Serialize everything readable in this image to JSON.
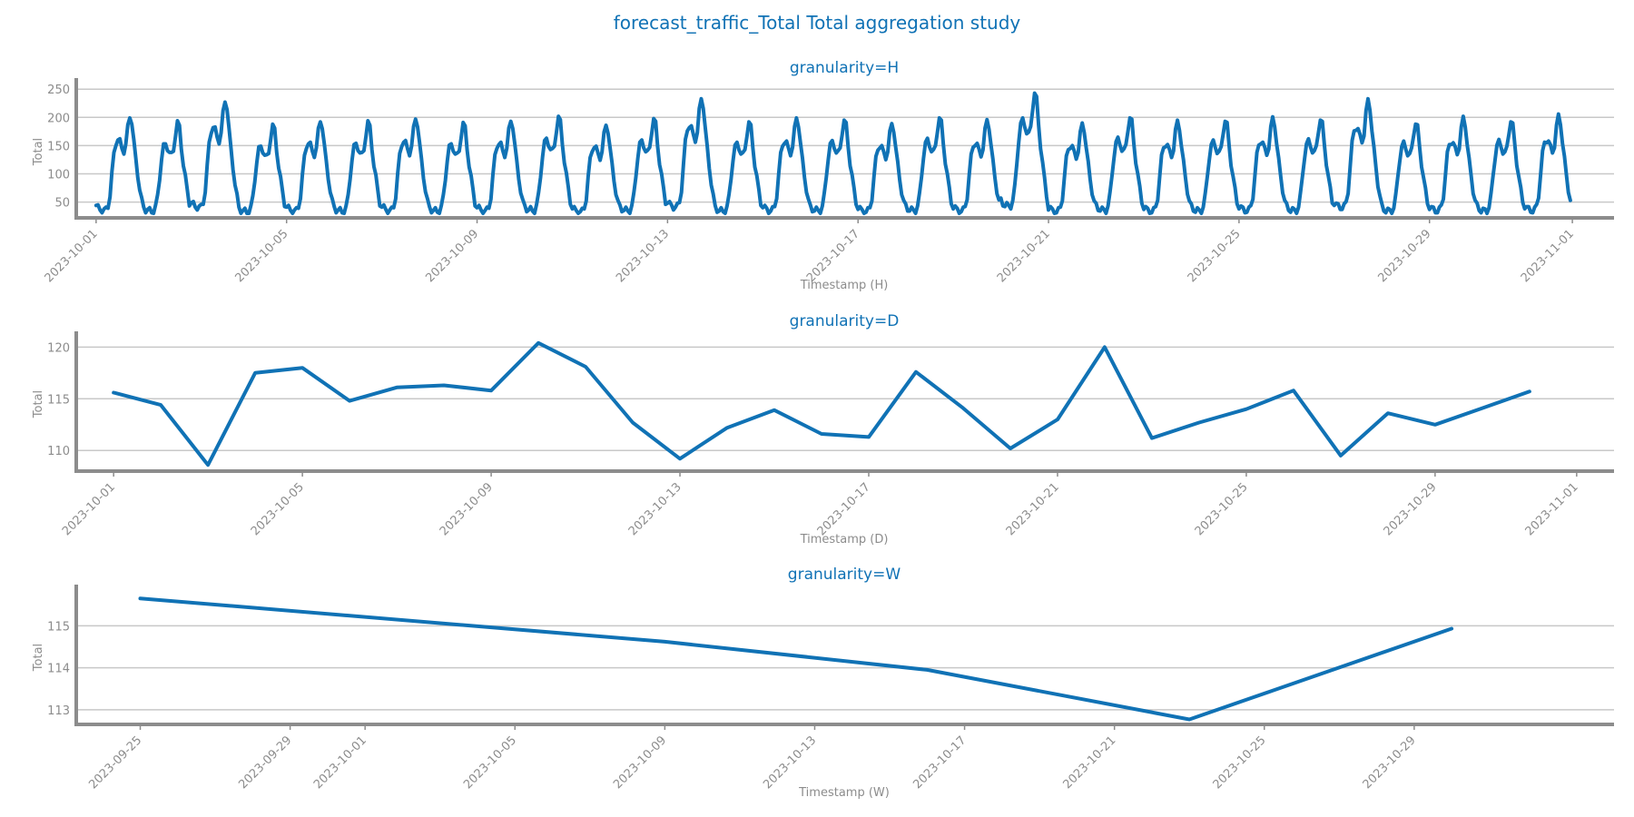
{
  "figure": {
    "title": "forecast_traffic_Total Total aggregation study"
  },
  "colors": {
    "series": "#1072b5",
    "title": "#1072b5",
    "text": "#8c8c8c",
    "grid": "#c8c8c8"
  },
  "chart_data": [
    {
      "type": "line",
      "title": "granularity=H",
      "xlabel": "Timestamp (H)",
      "ylabel": "Total",
      "grid": "horizontal",
      "xlim": [
        "2023-09-30T14:00",
        "2023-11-01T21:00"
      ],
      "ylim": [
        22,
        260
      ],
      "yticks": [
        50,
        100,
        150,
        200,
        250
      ],
      "xticks": [
        "2023-10-01",
        "2023-10-05",
        "2023-10-09",
        "2023-10-13",
        "2023-10-17",
        "2023-10-21",
        "2023-10-25",
        "2023-10-29",
        "2023-11-01"
      ],
      "x_start": "2023-10-01T00:00",
      "x_step_hours": 1,
      "daily_profile": [
        42,
        38,
        36,
        35,
        34,
        35,
        42,
        60,
        95,
        130,
        150,
        155,
        150,
        140,
        135,
        145,
        175,
        195,
        185,
        150,
        120,
        95,
        70,
        50
      ],
      "daily_scale": [
        1.04,
        0.98,
        1.18,
        0.95,
        1.0,
        0.98,
        1.02,
        0.97,
        1.0,
        1.03,
        0.96,
        1.01,
        1.2,
        0.98,
        1.02,
        1.0,
        0.97,
        1.02,
        1.0,
        1.25,
        0.97,
        1.03,
        0.99,
        1.0,
        1.02,
        1.01,
        1.18,
        0.98,
        1.02,
        1.0,
        1.04
      ],
      "note_values": "hourly series",
      "series": [
        {
          "values": []
        }
      ]
    },
    {
      "type": "line",
      "title": "granularity=D",
      "xlabel": "Timestamp (D)",
      "ylabel": "Total",
      "grid": "horizontal",
      "xlim": [
        "2023-09-30T05:00",
        "2023-11-01T19:00"
      ],
      "ylim": [
        108,
        121
      ],
      "yticks": [
        110,
        115,
        120
      ],
      "xticks": [
        "2023-10-01",
        "2023-10-05",
        "2023-10-09",
        "2023-10-13",
        "2023-10-17",
        "2023-10-21",
        "2023-10-25",
        "2023-10-29",
        "2023-11-01"
      ],
      "x": [
        "2023-10-01",
        "2023-10-02",
        "2023-10-03",
        "2023-10-04",
        "2023-10-05",
        "2023-10-06",
        "2023-10-07",
        "2023-10-08",
        "2023-10-09",
        "2023-10-10",
        "2023-10-11",
        "2023-10-12",
        "2023-10-13",
        "2023-10-14",
        "2023-10-15",
        "2023-10-16",
        "2023-10-17",
        "2023-10-18",
        "2023-10-19",
        "2023-10-20",
        "2023-10-21",
        "2023-10-22",
        "2023-10-23",
        "2023-10-24",
        "2023-10-25",
        "2023-10-26",
        "2023-10-27",
        "2023-10-28",
        "2023-10-29",
        "2023-10-30",
        "2023-10-31"
      ],
      "series": [
        {
          "values": [
            115.6,
            114.4,
            108.6,
            117.5,
            118.0,
            114.8,
            116.1,
            116.3,
            115.8,
            120.4,
            118.1,
            112.7,
            109.2,
            112.2,
            113.9,
            111.6,
            111.3,
            117.6,
            114.1,
            110.2,
            113.0,
            120.0,
            111.2,
            112.7,
            114.0,
            115.8,
            109.5,
            113.6,
            112.5,
            114.1,
            115.7
          ]
        }
      ]
    },
    {
      "type": "line",
      "title": "granularity=W",
      "xlabel": "Timestamp (W)",
      "ylabel": "Total",
      "grid": "horizontal",
      "xlim": [
        "2023-09-23T07:00",
        "2023-11-03T08:00"
      ],
      "ylim": [
        112.65,
        115.85
      ],
      "yticks": [
        113,
        114,
        115
      ],
      "xticks": [
        "2023-09-25",
        "2023-09-29",
        "2023-10-01",
        "2023-10-05",
        "2023-10-09",
        "2023-10-13",
        "2023-10-17",
        "2023-10-21",
        "2023-10-25",
        "2023-10-29"
      ],
      "x": [
        "2023-09-25",
        "2023-10-09",
        "2023-10-16",
        "2023-10-23",
        "2023-10-30"
      ],
      "series": [
        {
          "values": [
            115.65,
            114.62,
            113.95,
            112.77,
            114.93
          ]
        }
      ]
    }
  ]
}
